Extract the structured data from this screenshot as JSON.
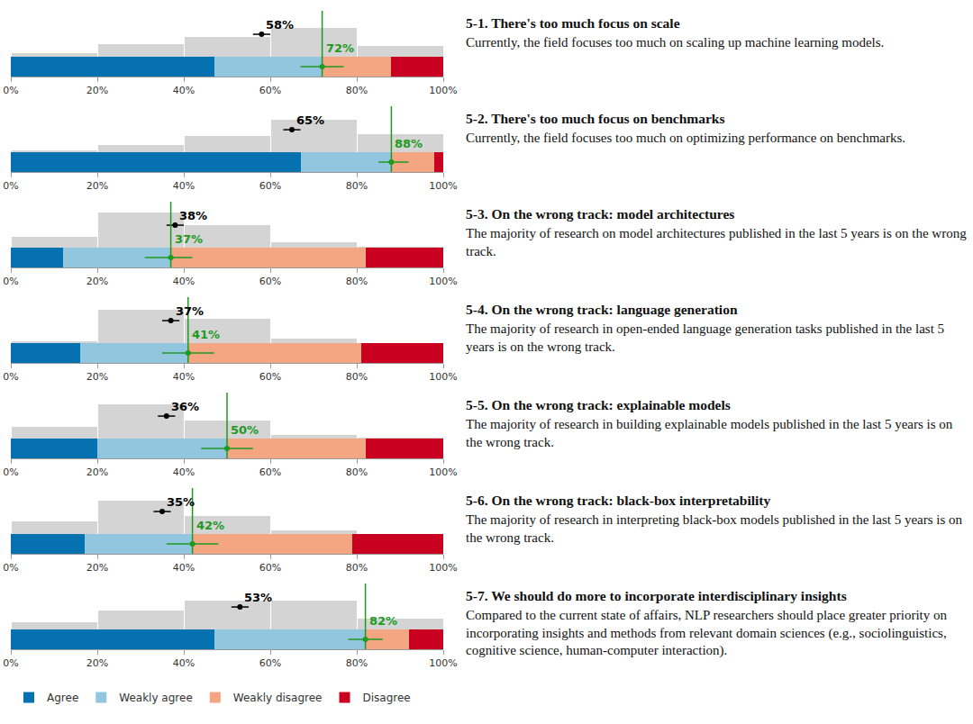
{
  "chart_data": [
    {
      "type": "bar",
      "orientation": "horizontal",
      "stacked": true,
      "legend": "bottom",
      "tick_labels": "x",
      "title": "5-1. There's too much focus on scale",
      "subtitle": "Currently, the field focuses too much on scaling up machine learning models.",
      "categories": [
        null
      ],
      "series": [
        {
          "name": "Agree",
          "color": "#0571b0",
          "values": [
            47
          ]
        },
        {
          "name": "Weakly agree",
          "color": "#92c5de",
          "values": [
            25
          ]
        },
        {
          "name": "Weakly disagree",
          "color": "#f4a582",
          "values": [
            16
          ]
        },
        {
          "name": "Disagree",
          "color": "#ca0020",
          "values": [
            12
          ]
        }
      ],
      "xlim": [
        0,
        100
      ],
      "xticks": [
        {
          "value": 0,
          "label": "0%"
        },
        {
          "value": 20,
          "label": "20%"
        },
        {
          "value": 40,
          "label": "40%"
        },
        {
          "value": 60,
          "label": "60%"
        },
        {
          "value": 80,
          "label": "80%"
        },
        {
          "value": 100,
          "label": "100%"
        }
      ],
      "prediction_distribution": {
        "bins": [
          0,
          20,
          40,
          60,
          80,
          100
        ],
        "values": [
          5,
          17,
          26,
          38,
          14
        ],
        "ylim": [
          0,
          50
        ]
      },
      "prediction": {
        "value": 58,
        "label": "58%",
        "ci": [
          56,
          60
        ]
      },
      "result": {
        "value": 72,
        "label": "72%",
        "ci": [
          67,
          77
        ]
      }
    },
    {
      "type": "bar",
      "orientation": "horizontal",
      "stacked": true,
      "tick_labels": "x",
      "title": "5-2. There's too much focus on benchmarks",
      "subtitle": "Currently, the field focuses too much on optimizing performance on benchmarks.",
      "categories": [
        null
      ],
      "series": [
        {
          "name": "Agree",
          "color": "#0571b0",
          "values": [
            67
          ]
        },
        {
          "name": "Weakly agree",
          "color": "#92c5de",
          "values": [
            21
          ]
        },
        {
          "name": "Weakly disagree",
          "color": "#f4a582",
          "values": [
            10
          ]
        },
        {
          "name": "Disagree",
          "color": "#ca0020",
          "values": [
            2
          ]
        }
      ],
      "xlim": [
        0,
        100
      ],
      "xticks": [
        {
          "value": 0,
          "label": "0%"
        },
        {
          "value": 20,
          "label": "20%"
        },
        {
          "value": 40,
          "label": "40%"
        },
        {
          "value": 60,
          "label": "60%"
        },
        {
          "value": 80,
          "label": "80%"
        },
        {
          "value": 100,
          "label": "100%"
        }
      ],
      "prediction_distribution": {
        "bins": [
          0,
          20,
          40,
          60,
          80,
          100
        ],
        "values": [
          3,
          10,
          21,
          42,
          24
        ],
        "ylim": [
          0,
          50
        ]
      },
      "prediction": {
        "value": 65,
        "label": "65%",
        "ci": [
          63,
          67
        ]
      },
      "result": {
        "value": 88,
        "label": "88%",
        "ci": [
          85,
          92
        ]
      }
    },
    {
      "type": "bar",
      "orientation": "horizontal",
      "stacked": true,
      "tick_labels": "x",
      "title": "5-3. On the wrong track: model architectures",
      "subtitle": "The majority of research on model architectures published in the last 5 years is on the wrong track.",
      "categories": [
        null
      ],
      "series": [
        {
          "name": "Agree",
          "color": "#0571b0",
          "values": [
            12
          ]
        },
        {
          "name": "Weakly agree",
          "color": "#92c5de",
          "values": [
            25
          ]
        },
        {
          "name": "Weakly disagree",
          "color": "#f4a582",
          "values": [
            45
          ]
        },
        {
          "name": "Disagree",
          "color": "#ca0020",
          "values": [
            18
          ]
        }
      ],
      "xlim": [
        0,
        100
      ],
      "xticks": [
        {
          "value": 0,
          "label": "0%"
        },
        {
          "value": 20,
          "label": "20%"
        },
        {
          "value": 40,
          "label": "40%"
        },
        {
          "value": 60,
          "label": "60%"
        },
        {
          "value": 80,
          "label": "80%"
        },
        {
          "value": 100,
          "label": "100%"
        }
      ],
      "prediction_distribution": {
        "bins": [
          0,
          20,
          40,
          60,
          80,
          100
        ],
        "values": [
          14,
          46,
          30,
          8,
          2
        ],
        "ylim": [
          0,
          50
        ]
      },
      "prediction": {
        "value": 38,
        "label": "38%",
        "ci": [
          36,
          40
        ]
      },
      "result": {
        "value": 37,
        "label": "37%",
        "ci": [
          31,
          42
        ]
      }
    },
    {
      "type": "bar",
      "orientation": "horizontal",
      "stacked": true,
      "tick_labels": "x",
      "title": "5-4. On the wrong track: language generation",
      "subtitle": "The majority of research in open-ended language generation tasks published in the last 5 years is on the wrong track.",
      "categories": [
        null
      ],
      "series": [
        {
          "name": "Agree",
          "color": "#0571b0",
          "values": [
            16
          ]
        },
        {
          "name": "Weakly agree",
          "color": "#92c5de",
          "values": [
            25
          ]
        },
        {
          "name": "Weakly disagree",
          "color": "#f4a582",
          "values": [
            40
          ]
        },
        {
          "name": "Disagree",
          "color": "#ca0020",
          "values": [
            19
          ]
        }
      ],
      "xlim": [
        0,
        100
      ],
      "xticks": [
        {
          "value": 0,
          "label": "0%"
        },
        {
          "value": 20,
          "label": "20%"
        },
        {
          "value": 40,
          "label": "40%"
        },
        {
          "value": 60,
          "label": "60%"
        },
        {
          "value": 80,
          "label": "80%"
        },
        {
          "value": 100,
          "label": "100%"
        }
      ],
      "prediction_distribution": {
        "bins": [
          0,
          20,
          40,
          60,
          80,
          100
        ],
        "values": [
          3,
          52,
          38,
          7,
          0
        ],
        "ylim": [
          0,
          60
        ]
      },
      "prediction": {
        "value": 37,
        "label": "37%",
        "ci": [
          35,
          39
        ]
      },
      "result": {
        "value": 41,
        "label": "41%",
        "ci": [
          35,
          47
        ]
      }
    },
    {
      "type": "bar",
      "orientation": "horizontal",
      "stacked": true,
      "tick_labels": "x",
      "title": "5-5. On the wrong track: explainable models",
      "subtitle": "The majority of research in building explainable models published in the last 5 years is on the wrong track.",
      "categories": [
        null
      ],
      "series": [
        {
          "name": "Agree",
          "color": "#0571b0",
          "values": [
            20
          ]
        },
        {
          "name": "Weakly agree",
          "color": "#92c5de",
          "values": [
            30
          ]
        },
        {
          "name": "Weakly disagree",
          "color": "#f4a582",
          "values": [
            32
          ]
        },
        {
          "name": "Disagree",
          "color": "#ca0020",
          "values": [
            18
          ]
        }
      ],
      "xlim": [
        0,
        100
      ],
      "xticks": [
        {
          "value": 0,
          "label": "0%"
        },
        {
          "value": 20,
          "label": "20%"
        },
        {
          "value": 40,
          "label": "40%"
        },
        {
          "value": 60,
          "label": "60%"
        },
        {
          "value": 80,
          "label": "80%"
        },
        {
          "value": 100,
          "label": "100%"
        }
      ],
      "prediction_distribution": {
        "bins": [
          0,
          20,
          40,
          60,
          80,
          100
        ],
        "values": [
          17,
          49,
          26,
          6,
          2
        ],
        "ylim": [
          0,
          55
        ]
      },
      "prediction": {
        "value": 36,
        "label": "36%",
        "ci": [
          34,
          38
        ]
      },
      "result": {
        "value": 50,
        "label": "50%",
        "ci": [
          44,
          56
        ]
      }
    },
    {
      "type": "bar",
      "orientation": "horizontal",
      "stacked": true,
      "tick_labels": "x",
      "title": "5-6. On the wrong track: black-box interpretability",
      "subtitle": "The majority of research in interpreting black-box models published in the last 5 years is on the wrong track.",
      "categories": [
        null
      ],
      "series": [
        {
          "name": "Agree",
          "color": "#0571b0",
          "values": [
            17
          ]
        },
        {
          "name": "Weakly agree",
          "color": "#92c5de",
          "values": [
            25
          ]
        },
        {
          "name": "Weakly disagree",
          "color": "#f4a582",
          "values": [
            37
          ]
        },
        {
          "name": "Disagree",
          "color": "#ca0020",
          "values": [
            21
          ]
        }
      ],
      "xlim": [
        0,
        100
      ],
      "xticks": [
        {
          "value": 0,
          "label": "0%"
        },
        {
          "value": 20,
          "label": "20%"
        },
        {
          "value": 40,
          "label": "40%"
        },
        {
          "value": 60,
          "label": "60%"
        },
        {
          "value": 80,
          "label": "80%"
        },
        {
          "value": 100,
          "label": "100%"
        }
      ],
      "prediction_distribution": {
        "bins": [
          0,
          20,
          40,
          60,
          80,
          100
        ],
        "values": [
          19,
          48,
          26,
          6,
          1
        ],
        "ylim": [
          0,
          55
        ]
      },
      "prediction": {
        "value": 35,
        "label": "35%",
        "ci": [
          33,
          37
        ]
      },
      "result": {
        "value": 42,
        "label": "42%",
        "ci": [
          36,
          48
        ]
      }
    },
    {
      "type": "bar",
      "orientation": "horizontal",
      "stacked": true,
      "tick_labels": "x",
      "title": "5-7. We should do more to incorporate interdisciplinary insights",
      "subtitle": "Compared to the current state of affairs, NLP researchers should place greater priority on incorporating insights and methods from relevant domain sciences (e.g., sociolinguistics, cognitive science, human-computer interaction).",
      "categories": [
        null
      ],
      "series": [
        {
          "name": "Agree",
          "color": "#0571b0",
          "values": [
            47
          ]
        },
        {
          "name": "Weakly agree",
          "color": "#92c5de",
          "values": [
            35
          ]
        },
        {
          "name": "Weakly disagree",
          "color": "#f4a582",
          "values": [
            10
          ]
        },
        {
          "name": "Disagree",
          "color": "#ca0020",
          "values": [
            8
          ]
        }
      ],
      "xlim": [
        0,
        100
      ],
      "xticks": [
        {
          "value": 0,
          "label": "0%"
        },
        {
          "value": 20,
          "label": "20%"
        },
        {
          "value": 40,
          "label": "40%"
        },
        {
          "value": 60,
          "label": "60%"
        },
        {
          "value": 80,
          "label": "80%"
        },
        {
          "value": 100,
          "label": "100%"
        }
      ],
      "prediction_distribution": {
        "bins": [
          0,
          20,
          40,
          60,
          80,
          100
        ],
        "values": [
          8,
          20,
          30,
          30,
          12
        ],
        "ylim": [
          0,
          40
        ]
      },
      "prediction": {
        "value": 53,
        "label": "53%",
        "ci": [
          51,
          55
        ]
      },
      "result": {
        "value": 82,
        "label": "82%",
        "ci": [
          78,
          86
        ]
      }
    }
  ]
}
